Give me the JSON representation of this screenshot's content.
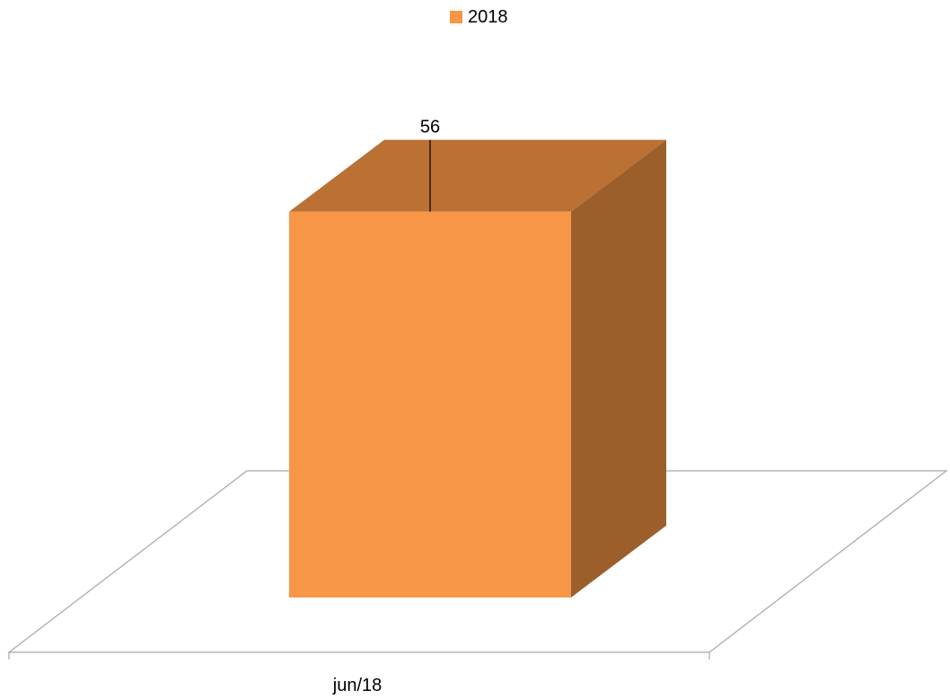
{
  "chart_data": {
    "type": "bar",
    "style": "3d-column",
    "categories": [
      "jun/18"
    ],
    "series": [
      {
        "name": "2018",
        "values": [
          56
        ],
        "color": "#F79646"
      }
    ],
    "data_labels": [
      "56"
    ],
    "legend": {
      "position": "top",
      "entries": [
        "2018"
      ]
    },
    "grid": false,
    "ylim": [
      0,
      60
    ]
  },
  "colors": {
    "bar_front": "#F79646",
    "bar_top": "#BB7034",
    "bar_side": "#9C5F2C",
    "floor_line": "#A6A6A6"
  }
}
